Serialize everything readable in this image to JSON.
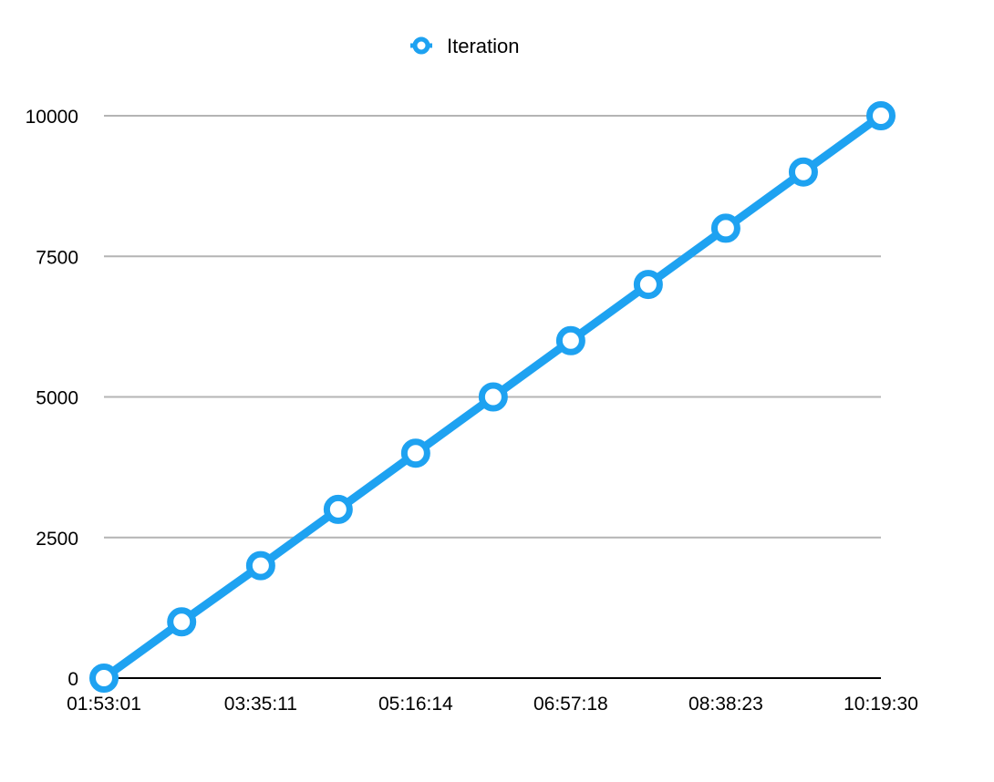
{
  "chart_data": {
    "type": "line",
    "legend": {
      "position": "top-center",
      "entries": [
        "Iteration"
      ]
    },
    "colors": {
      "series": "#1ea2f1",
      "grid": "#b4b4b4",
      "axis": "#000000",
      "marker_fill": "#ffffff"
    },
    "grid": true,
    "ylim": [
      0,
      10000
    ],
    "y_ticks": [
      "0",
      "2500",
      "5000",
      "7500",
      "10000"
    ],
    "x_tick_labels": [
      "01:53:01",
      "03:35:11",
      "05:16:14",
      "06:57:18",
      "08:38:23",
      "10:19:30"
    ],
    "xlim": [
      "01:53:01",
      "10:19:30"
    ],
    "series": [
      {
        "name": "Iteration",
        "points": [
          {
            "x": "01:53:01",
            "y": 0
          },
          {
            "x": "02:43:40",
            "y": 1000
          },
          {
            "x": "03:35:11",
            "y": 2000
          },
          {
            "x": "04:25:42",
            "y": 3000
          },
          {
            "x": "05:16:14",
            "y": 4000
          },
          {
            "x": "06:06:46",
            "y": 5000
          },
          {
            "x": "06:57:18",
            "y": 6000
          },
          {
            "x": "07:47:50",
            "y": 7000
          },
          {
            "x": "08:38:23",
            "y": 8000
          },
          {
            "x": "09:28:56",
            "y": 9000
          },
          {
            "x": "10:19:30",
            "y": 10000
          }
        ]
      }
    ]
  }
}
